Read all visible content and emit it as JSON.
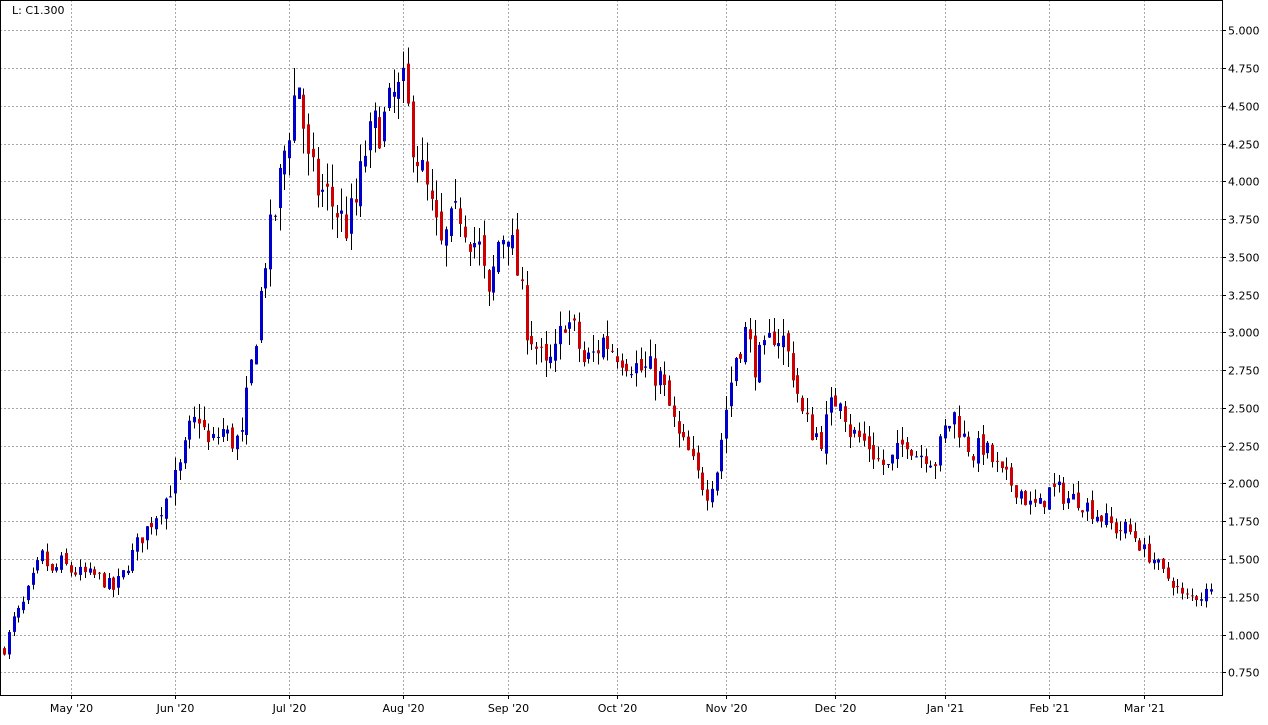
{
  "legend": {
    "text": "L: C1.300"
  },
  "colors": {
    "up": "#0000cc",
    "down": "#cc0000",
    "wick": "#000000",
    "grid": "#a8a8a8",
    "background": "#ffffff"
  },
  "chart_data": {
    "type": "candlestick",
    "ylim": [
      0.6,
      5.2
    ],
    "xlim": [
      0,
      257
    ],
    "grid": true,
    "y_axis_side": "right",
    "y_ticks": [
      "0.750",
      "1.000",
      "1.250",
      "1.500",
      "1.750",
      "2.000",
      "2.250",
      "2.500",
      "2.750",
      "3.000",
      "3.250",
      "3.500",
      "3.750",
      "4.000",
      "4.250",
      "4.500",
      "4.750",
      "5.000"
    ],
    "x_ticks": [
      {
        "label": "May '20",
        "index": 14
      },
      {
        "label": "Jun '20",
        "index": 36
      },
      {
        "label": "Jul '20",
        "index": 60
      },
      {
        "label": "Aug '20",
        "index": 84
      },
      {
        "label": "Sep '20",
        "index": 106
      },
      {
        "label": "Oct '20",
        "index": 129
      },
      {
        "label": "Nov '20",
        "index": 152
      },
      {
        "label": "Dec '20",
        "index": 175
      },
      {
        "label": "Jan '21",
        "index": 198
      },
      {
        "label": "Feb '21",
        "index": 220
      },
      {
        "label": "Mar '21",
        "index": 240
      }
    ],
    "anchors": [
      [
        0,
        0.9
      ],
      [
        2,
        1.1
      ],
      [
        4,
        1.2
      ],
      [
        7,
        1.45
      ],
      [
        8,
        1.52
      ],
      [
        10,
        1.4
      ],
      [
        12,
        1.48
      ],
      [
        14,
        1.42
      ],
      [
        17,
        1.4
      ],
      [
        20,
        1.38
      ],
      [
        23,
        1.3
      ],
      [
        25,
        1.4
      ],
      [
        28,
        1.6
      ],
      [
        31,
        1.75
      ],
      [
        34,
        1.9
      ],
      [
        37,
        2.1
      ],
      [
        39,
        2.35
      ],
      [
        41,
        2.45
      ],
      [
        43,
        2.25
      ],
      [
        46,
        2.35
      ],
      [
        48,
        2.28
      ],
      [
        50,
        2.3
      ],
      [
        51,
        2.55
      ],
      [
        53,
        3.0
      ],
      [
        55,
        3.5
      ],
      [
        57,
        3.8
      ],
      [
        59,
        4.2
      ],
      [
        61,
        4.55
      ],
      [
        62,
        4.65
      ],
      [
        64,
        4.1
      ],
      [
        66,
        3.95
      ],
      [
        68,
        3.9
      ],
      [
        70,
        3.8
      ],
      [
        72,
        3.7
      ],
      [
        74,
        3.85
      ],
      [
        76,
        4.2
      ],
      [
        78,
        4.35
      ],
      [
        80,
        4.4
      ],
      [
        82,
        4.55
      ],
      [
        84,
        4.6
      ],
      [
        86,
        4.3
      ],
      [
        88,
        4.05
      ],
      [
        90,
        3.8
      ],
      [
        92,
        3.55
      ],
      [
        94,
        3.7
      ],
      [
        96,
        3.8
      ],
      [
        98,
        3.65
      ],
      [
        100,
        3.55
      ],
      [
        102,
        3.2
      ],
      [
        104,
        3.6
      ],
      [
        106,
        3.7
      ],
      [
        108,
        3.4
      ],
      [
        110,
        3.05
      ],
      [
        112,
        2.9
      ],
      [
        114,
        2.75
      ],
      [
        116,
        2.85
      ],
      [
        118,
        3.1
      ],
      [
        120,
        3.0
      ],
      [
        122,
        2.8
      ],
      [
        124,
        2.85
      ],
      [
        126,
        2.95
      ],
      [
        128,
        2.9
      ],
      [
        130,
        2.85
      ],
      [
        132,
        2.8
      ],
      [
        134,
        2.75
      ],
      [
        136,
        2.75
      ],
      [
        138,
        2.7
      ],
      [
        140,
        2.5
      ],
      [
        142,
        2.3
      ],
      [
        144,
        2.2
      ],
      [
        146,
        2.05
      ],
      [
        148,
        1.95
      ],
      [
        150,
        2.1
      ],
      [
        152,
        2.5
      ],
      [
        154,
        2.85
      ],
      [
        156,
        3.0
      ],
      [
        158,
        2.8
      ],
      [
        160,
        2.85
      ],
      [
        162,
        3.0
      ],
      [
        164,
        2.95
      ],
      [
        166,
        2.75
      ],
      [
        168,
        2.45
      ],
      [
        170,
        2.35
      ],
      [
        172,
        2.3
      ],
      [
        174,
        2.5
      ],
      [
        176,
        2.6
      ],
      [
        178,
        2.35
      ],
      [
        180,
        2.3
      ],
      [
        182,
        2.25
      ],
      [
        184,
        2.15
      ],
      [
        186,
        2.1
      ],
      [
        188,
        2.2
      ],
      [
        190,
        2.3
      ],
      [
        192,
        2.2
      ],
      [
        194,
        2.2
      ],
      [
        196,
        2.15
      ],
      [
        198,
        2.35
      ],
      [
        200,
        2.45
      ],
      [
        202,
        2.3
      ],
      [
        204,
        2.2
      ],
      [
        206,
        2.25
      ],
      [
        208,
        2.15
      ],
      [
        210,
        2.05
      ],
      [
        212,
        2.0
      ],
      [
        214,
        1.95
      ],
      [
        216,
        1.85
      ],
      [
        218,
        1.85
      ],
      [
        220,
        1.95
      ],
      [
        222,
        1.95
      ],
      [
        224,
        1.9
      ],
      [
        226,
        1.9
      ],
      [
        228,
        1.85
      ],
      [
        230,
        1.8
      ],
      [
        232,
        1.75
      ],
      [
        234,
        1.7
      ],
      [
        236,
        1.7
      ],
      [
        238,
        1.65
      ],
      [
        240,
        1.55
      ],
      [
        242,
        1.5
      ],
      [
        244,
        1.4
      ],
      [
        246,
        1.35
      ],
      [
        248,
        1.25
      ],
      [
        250,
        1.25
      ],
      [
        252,
        1.26
      ],
      [
        253,
        1.28
      ],
      [
        254,
        1.3
      ]
    ],
    "last_close": 1.3
  }
}
